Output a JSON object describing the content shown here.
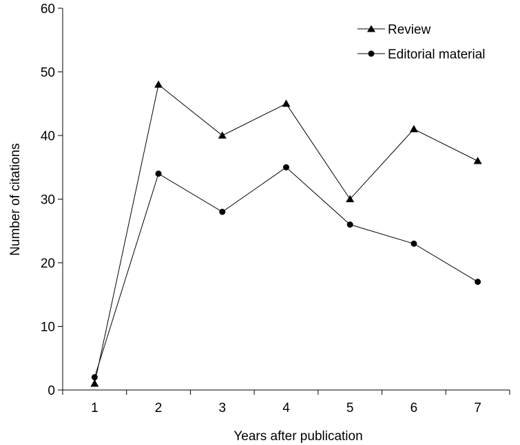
{
  "chart_data": {
    "type": "line",
    "title": "",
    "xlabel": "Years after publication",
    "ylabel": "Number of citations",
    "x": [
      1,
      2,
      3,
      4,
      5,
      6,
      7
    ],
    "x_tick_labels": [
      "1",
      "2",
      "3",
      "4",
      "5",
      "6",
      "7"
    ],
    "xlim": [
      0.5,
      7.5
    ],
    "ylim": [
      0,
      60
    ],
    "y_ticks": [
      0,
      10,
      20,
      30,
      40,
      50,
      60
    ],
    "y_tick_labels": [
      "0",
      "10",
      "20",
      "30",
      "40",
      "50",
      "60"
    ],
    "grid": false,
    "legend_position": "top-right",
    "series": [
      {
        "name": "Review",
        "marker": "triangle",
        "color": "#000000",
        "values": [
          1,
          48,
          40,
          45,
          30,
          41,
          36
        ]
      },
      {
        "name": "Editorial material",
        "marker": "circle",
        "color": "#000000",
        "values": [
          2,
          34,
          28,
          35,
          26,
          23,
          17
        ]
      }
    ]
  }
}
